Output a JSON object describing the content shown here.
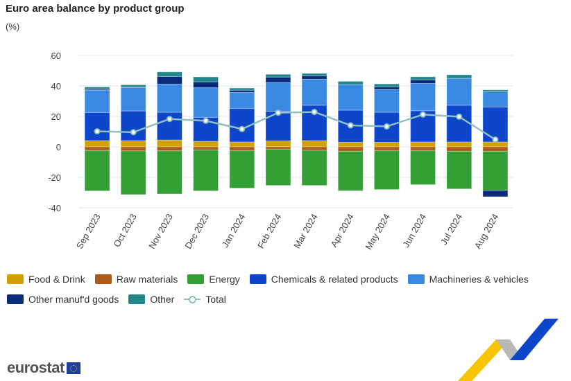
{
  "title": "Euro area balance by product group",
  "unit": "(%)",
  "logo_text": "eurostat",
  "chart_data": {
    "type": "bar",
    "stacked": true,
    "title": "Euro area balance by product group",
    "ylabel": "(%)",
    "ylim": [
      -40,
      60
    ],
    "yticks": [
      60,
      40,
      20,
      0,
      -20,
      -40
    ],
    "grid": true,
    "legend_position": "bottom",
    "categories": [
      "Sep 2023",
      "Oct 2023",
      "Nov 2023",
      "Dec 2023",
      "Jan 2024",
      "Feb 2024",
      "Mar 2024",
      "Apr 2024",
      "May 2024",
      "Jun 2024",
      "Jul 2024",
      "Aug 2024"
    ],
    "series": [
      {
        "name": "Food & Drink",
        "color": "#cfa000",
        "values": [
          4.1,
          4.1,
          4.5,
          3.6,
          3.2,
          3.9,
          4.1,
          3.0,
          3.0,
          3.2,
          3.2,
          3.2
        ]
      },
      {
        "name": "Raw materials",
        "color": "#a95b17",
        "values": [
          -2.4,
          -2.7,
          -2.6,
          -2.1,
          -2.4,
          -1.5,
          -2.3,
          -2.9,
          -2.4,
          -2.4,
          -2.9,
          -2.9
        ]
      },
      {
        "name": "Energy",
        "color": "#349f34",
        "values": [
          -26.5,
          -28.6,
          -28.3,
          -26.8,
          -24.7,
          -23.8,
          -23.0,
          -25.7,
          -25.6,
          -22.4,
          -24.7,
          -25.7
        ]
      },
      {
        "name": "Chemicals & related products",
        "color": "#0e46c9",
        "values": [
          18.5,
          19.5,
          18.2,
          15.8,
          22.0,
          19.4,
          23.2,
          21.1,
          19.7,
          20.5,
          24.1,
          22.9
        ]
      },
      {
        "name": "Machineries & vehicles",
        "color": "#3a8ae3",
        "values": [
          14.7,
          15.3,
          18.5,
          19.4,
          10.5,
          18.9,
          17.1,
          16.8,
          14.9,
          17.9,
          17.7,
          10.1
        ]
      },
      {
        "name": "Other manuf'd goods",
        "color": "#0a2b7a",
        "values": [
          0.6,
          0.3,
          5.0,
          3.9,
          1.5,
          3.6,
          2.3,
          -0.3,
          1.7,
          2.4,
          0.0,
          -4.1
        ]
      },
      {
        "name": "Other",
        "color": "#21868a",
        "values": [
          1.4,
          1.5,
          3.0,
          3.2,
          1.4,
          1.8,
          1.5,
          2.1,
          2.0,
          2.0,
          2.3,
          1.2
        ]
      }
    ],
    "line_series": {
      "name": "Total",
      "color": "#8fc0c0",
      "values": [
        10.2,
        9.6,
        18.3,
        17.1,
        11.7,
        22.4,
        22.9,
        14.1,
        13.4,
        21.2,
        19.8,
        4.8
      ]
    }
  }
}
